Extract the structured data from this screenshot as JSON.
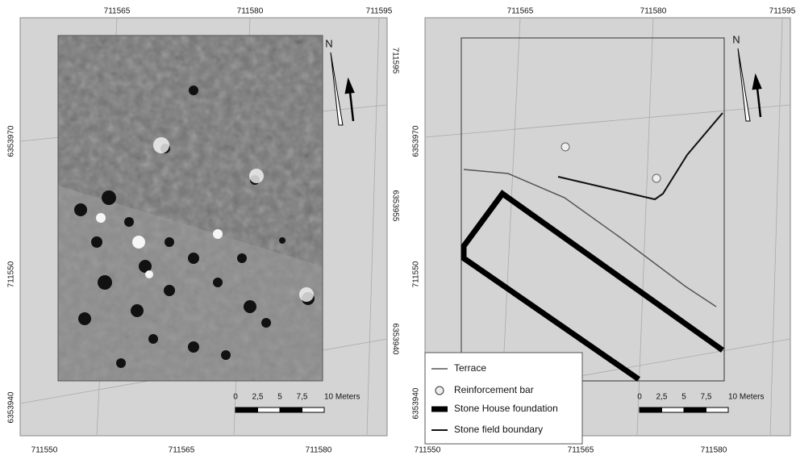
{
  "panels": [
    {
      "top_labels": [
        "711565",
        "711580",
        "711595"
      ],
      "left_labels": [
        "6353970",
        "711550",
        "6353940"
      ],
      "right_labels": [
        "711595",
        "6353955",
        "6353940"
      ],
      "bottom_labels": [
        "711550",
        "711565",
        "711580"
      ],
      "scale_labels": [
        "0",
        "2,5",
        "5",
        "7,5",
        "10 Meters"
      ],
      "north": "N"
    },
    {
      "top_labels": [
        "711565",
        "711580",
        "711595"
      ],
      "left_labels": [
        "6353970",
        "711550",
        "6353940"
      ],
      "bottom_labels": [
        "711550",
        "711565",
        "711580"
      ],
      "scale_labels": [
        "0",
        "2,5",
        "5",
        "7,5",
        "10 Meters"
      ],
      "north": "N"
    }
  ],
  "legend": [
    "Terrace",
    "Reinforcement bar",
    "Stone House foundation",
    "Stone field boundary"
  ]
}
